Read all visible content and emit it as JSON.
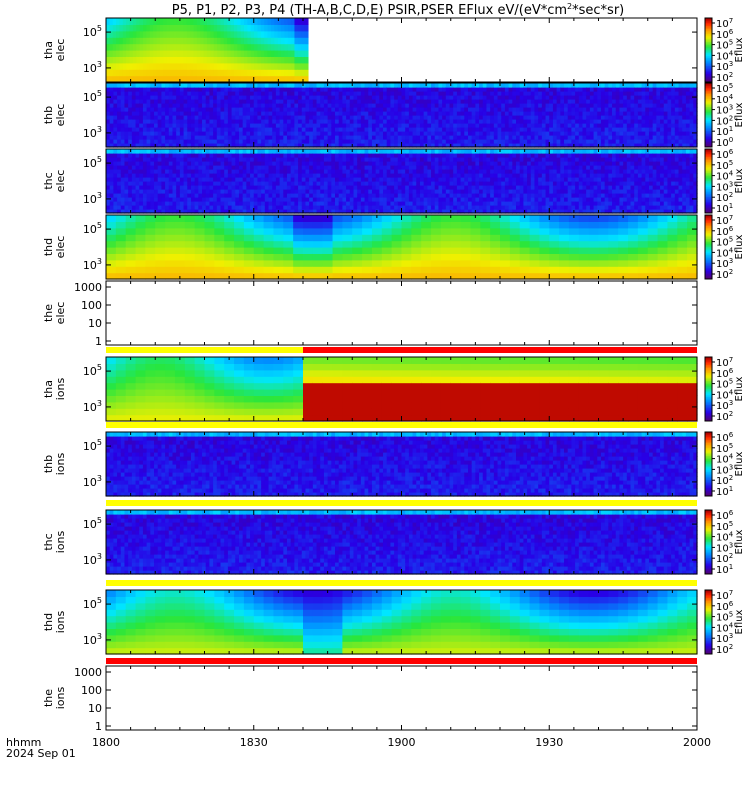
{
  "chart_data": {
    "type": "heatmap",
    "title": "P5, P1, P2, P3, P4 (TH-A,B,C,D,E) PSIR,PSER EFlux eV/(eV*cm",
    "title_sup": "2",
    "title_end": "*sec*sr)",
    "x_label_lines": [
      "hhmm",
      "2024 Sep 01"
    ],
    "x_ticks": [
      "1800",
      "1830",
      "1900",
      "1930",
      "2000"
    ],
    "x_range_minutes": [
      0,
      120
    ],
    "colorbar_label": "Eflux",
    "panels": [
      {
        "label": [
          "tha",
          "elec"
        ],
        "y_ticks": [
          "10^5",
          "10^3"
        ],
        "y_log": true,
        "data_end_minute": 41,
        "cb_ticks": [
          "7",
          "6",
          "5",
          "4",
          "3",
          "2"
        ],
        "pattern": "hot"
      },
      {
        "label": [
          "thb",
          "elec"
        ],
        "y_ticks": [
          "10^5",
          "10^3"
        ],
        "y_log": true,
        "data_end_minute": 120,
        "cb_ticks": [
          "5",
          "4",
          "3",
          "2",
          "1",
          "0"
        ],
        "pattern": "noise"
      },
      {
        "label": [
          "thc",
          "elec"
        ],
        "y_ticks": [
          "10^5",
          "10^3"
        ],
        "y_log": true,
        "data_end_minute": 120,
        "cb_ticks": [
          "6",
          "5",
          "4",
          "3",
          "2",
          "1"
        ],
        "pattern": "noise"
      },
      {
        "label": [
          "thd",
          "elec"
        ],
        "y_ticks": [
          "10^5",
          "10^3"
        ],
        "y_log": true,
        "data_end_minute": 120,
        "cb_ticks": [
          "7",
          "6",
          "5",
          "4",
          "3",
          "2"
        ],
        "pattern": "hot"
      },
      {
        "label": [
          "the",
          "elec"
        ],
        "y_ticks": [
          "1000",
          "100",
          "10",
          "1"
        ],
        "y_log": true,
        "data_end_minute": 0,
        "pattern": "empty"
      },
      {
        "label": [
          "tha",
          "ions"
        ],
        "y_ticks": [
          "10^5",
          "10^3"
        ],
        "y_log": true,
        "data_end_minute": 120,
        "cb_ticks": [
          "7",
          "6",
          "5",
          "4",
          "3",
          "2"
        ],
        "pattern": "ions_a"
      },
      {
        "label": [
          "thb",
          "ions"
        ],
        "y_ticks": [
          "10^5",
          "10^3"
        ],
        "y_log": true,
        "data_end_minute": 120,
        "cb_ticks": [
          "6",
          "5",
          "4",
          "3",
          "2",
          "1"
        ],
        "pattern": "noise"
      },
      {
        "label": [
          "thc",
          "ions"
        ],
        "y_ticks": [
          "10^5",
          "10^3"
        ],
        "y_log": true,
        "data_end_minute": 120,
        "cb_ticks": [
          "6",
          "5",
          "4",
          "3",
          "2",
          "1"
        ],
        "pattern": "noise"
      },
      {
        "label": [
          "thd",
          "ions"
        ],
        "y_ticks": [
          "10^5",
          "10^3"
        ],
        "y_log": true,
        "data_end_minute": 120,
        "cb_ticks": [
          "7",
          "6",
          "5",
          "4",
          "3",
          "2"
        ],
        "pattern": "ions_d"
      },
      {
        "label": [
          "the",
          "ions"
        ],
        "y_ticks": [
          "1000",
          "100",
          "10",
          "1"
        ],
        "y_log": true,
        "data_end_minute": 0,
        "pattern": "empty"
      }
    ],
    "mode_bars": [
      {
        "after_panel": 4,
        "segments": [
          {
            "from": 0,
            "to": 40,
            "color": "#ffff00"
          },
          {
            "from": 40,
            "to": 120,
            "color": "#ff0000"
          }
        ]
      },
      {
        "after_panel": 5,
        "segments": [
          {
            "from": 0,
            "to": 120,
            "color": "#ffff00"
          }
        ]
      },
      {
        "after_panel": 6,
        "segments": [
          {
            "from": 0,
            "to": 120,
            "color": "#ffff00"
          }
        ]
      },
      {
        "after_panel": 7,
        "segments": [
          {
            "from": 0,
            "to": 120,
            "color": "#ffff00"
          }
        ]
      },
      {
        "after_panel": 8,
        "segments": [
          {
            "from": 0,
            "to": 120,
            "color": "#ff0000"
          }
        ]
      }
    ]
  }
}
